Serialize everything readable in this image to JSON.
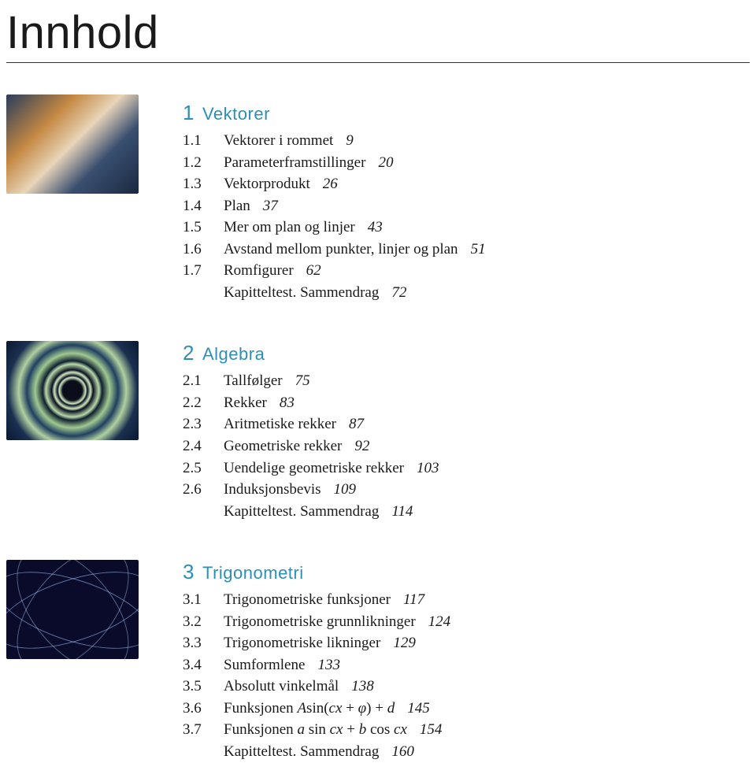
{
  "page": {
    "title": "Innhold",
    "title_color": "#1a1a1a",
    "accent_color": "#2d8fb5"
  },
  "chapters": [
    {
      "number": "1",
      "title": "Vektorer",
      "entries": [
        {
          "sec": "1.1",
          "label": "Vektorer i rommet",
          "page": "9"
        },
        {
          "sec": "1.2",
          "label": "Parameterframstillinger",
          "page": "20"
        },
        {
          "sec": "1.3",
          "label": "Vektorprodukt",
          "page": "26"
        },
        {
          "sec": "1.4",
          "label": "Plan",
          "page": "37"
        },
        {
          "sec": "1.5",
          "label": "Mer om plan og linjer",
          "page": "43"
        },
        {
          "sec": "1.6",
          "label": "Avstand mellom punkter, linjer og plan",
          "page": "51"
        },
        {
          "sec": "1.7",
          "label": "Romfigurer",
          "page": "62"
        }
      ],
      "summary": {
        "label": "Kapitteltest. Sammendrag",
        "page": "72"
      }
    },
    {
      "number": "2",
      "title": "Algebra",
      "entries": [
        {
          "sec": "2.1",
          "label": "Tallfølger",
          "page": "75"
        },
        {
          "sec": "2.2",
          "label": "Rekker",
          "page": "83"
        },
        {
          "sec": "2.3",
          "label": "Aritmetiske rekker",
          "page": "87"
        },
        {
          "sec": "2.4",
          "label": "Geometriske rekker",
          "page": "92"
        },
        {
          "sec": "2.5",
          "label": "Uendelige geometriske rekker",
          "page": "103"
        },
        {
          "sec": "2.6",
          "label": "Induksjonsbevis",
          "page": "109"
        }
      ],
      "summary": {
        "label": "Kapitteltest. Sammendrag",
        "page": "114"
      }
    },
    {
      "number": "3",
      "title": "Trigonometri",
      "entries": [
        {
          "sec": "3.1",
          "label": "Trigonometriske funksjoner",
          "page": "117"
        },
        {
          "sec": "3.2",
          "label": "Trigonometriske grunnlikninger",
          "page": "124"
        },
        {
          "sec": "3.3",
          "label": "Trigonometriske likninger",
          "page": "129"
        },
        {
          "sec": "3.4",
          "label": "Sumformlene",
          "page": "133"
        },
        {
          "sec": "3.5",
          "label": "Absolutt vinkelmål",
          "page": "138"
        },
        {
          "sec": "3.6",
          "label_html": "Funksjonen <span class=\"math\">A</span><span class=\"upright\">sin(</span><span class=\"math\">cx</span> + <span class=\"math\">φ</span><span class=\"upright\">)</span> + <span class=\"math\">d</span>",
          "page": "145"
        },
        {
          "sec": "3.7",
          "label_html": "Funksjonen <span class=\"math\">a</span><span class=\"upright\"> sin </span><span class=\"math\">cx</span> + <span class=\"math\">b</span><span class=\"upright\"> cos </span><span class=\"math\">cx</span>",
          "page": "154"
        }
      ],
      "summary": {
        "label": "Kapitteltest. Sammendrag",
        "page": "160"
      }
    }
  ]
}
